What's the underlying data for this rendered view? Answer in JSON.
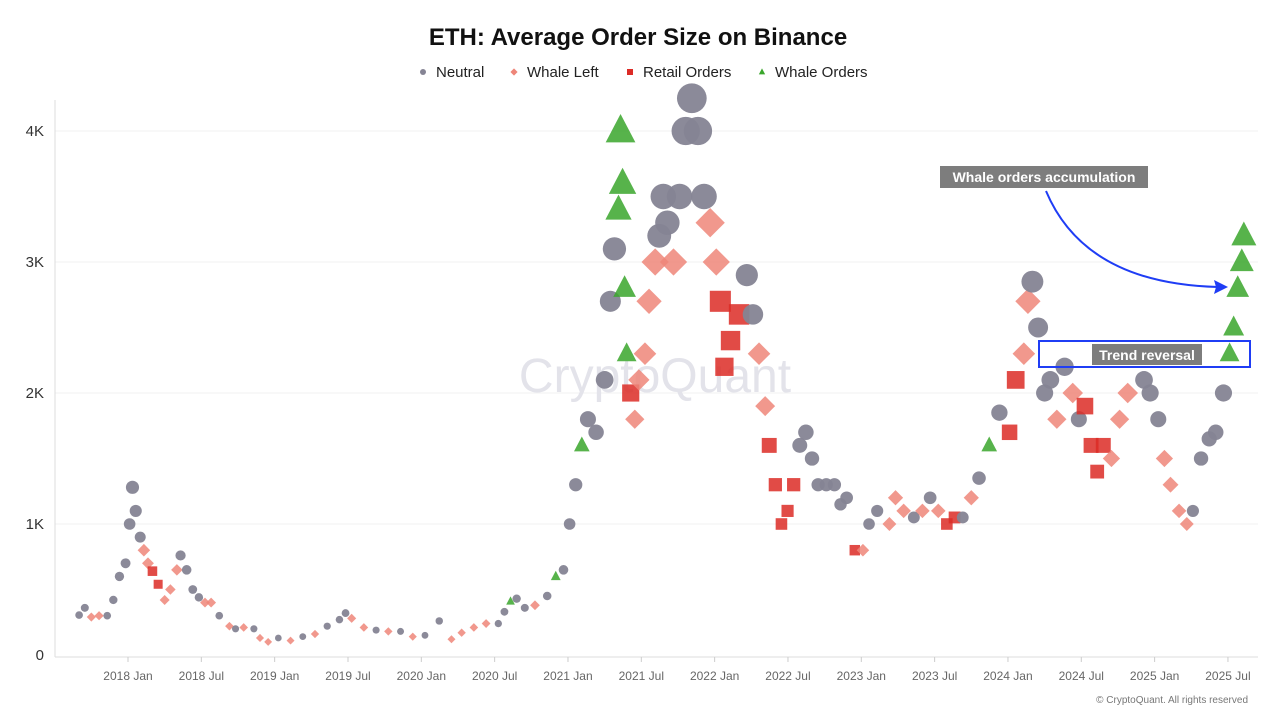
{
  "chart_data": {
    "type": "scatter",
    "title": "ETH: Average Order Size on Binance",
    "xlabel": "",
    "ylabel": "",
    "ylim": [
      0,
      4300
    ],
    "xlim": [
      "2017-08-20",
      "2025-08-20"
    ],
    "grid": true,
    "legend_placement": "top-center",
    "y_ticks": [
      {
        "v": 0,
        "label": "0"
      },
      {
        "v": 1000,
        "label": "1K"
      },
      {
        "v": 2000,
        "label": "2K"
      },
      {
        "v": 3000,
        "label": "3K"
      },
      {
        "v": 4000,
        "label": "4K"
      }
    ],
    "x_ticks": [
      {
        "d": "2018-01-01",
        "label": "2018 Jan"
      },
      {
        "d": "2018-07-01",
        "label": "2018 Jul"
      },
      {
        "d": "2019-01-01",
        "label": "2019 Jan"
      },
      {
        "d": "2019-07-01",
        "label": "2019 Jul"
      },
      {
        "d": "2020-01-01",
        "label": "2020 Jan"
      },
      {
        "d": "2020-07-01",
        "label": "2020 Jul"
      },
      {
        "d": "2021-01-01",
        "label": "2021 Jan"
      },
      {
        "d": "2021-07-01",
        "label": "2021 Jul"
      },
      {
        "d": "2022-01-01",
        "label": "2022 Jan"
      },
      {
        "d": "2022-07-01",
        "label": "2022 Jul"
      },
      {
        "d": "2023-01-01",
        "label": "2023 Jan"
      },
      {
        "d": "2023-07-01",
        "label": "2023 Jul"
      },
      {
        "d": "2024-01-01",
        "label": "2024 Jan"
      },
      {
        "d": "2024-07-01",
        "label": "2024 Jul"
      },
      {
        "d": "2025-01-01",
        "label": "2025 Jan"
      },
      {
        "d": "2025-07-01",
        "label": "2025 Jul"
      }
    ],
    "series": [
      {
        "key": "N",
        "name": "Neutral",
        "color": "#858494",
        "marker": "circle"
      },
      {
        "key": "W",
        "name": "Whale Left",
        "color": "#ee8679",
        "marker": "diamond"
      },
      {
        "key": "R",
        "name": "Retail Orders",
        "color": "#dc2b26",
        "marker": "square"
      },
      {
        "key": "G",
        "name": "Whale Orders",
        "color": "#3aa62c",
        "marker": "triangle"
      }
    ],
    "points": [
      [
        "2017-09-01",
        305,
        "N"
      ],
      [
        "2017-09-15",
        360,
        "N"
      ],
      [
        "2017-10-01",
        290,
        "W"
      ],
      [
        "2017-10-20",
        300,
        "W"
      ],
      [
        "2017-11-10",
        300,
        "N"
      ],
      [
        "2017-11-25",
        420,
        "N"
      ],
      [
        "2017-12-10",
        600,
        "N"
      ],
      [
        "2017-12-25",
        700,
        "N"
      ],
      [
        "2018-01-05",
        1000,
        "N"
      ],
      [
        "2018-01-12",
        1280,
        "N"
      ],
      [
        "2018-01-20",
        1100,
        "N"
      ],
      [
        "2018-02-01",
        900,
        "N"
      ],
      [
        "2018-02-10",
        800,
        "W"
      ],
      [
        "2018-02-20",
        700,
        "W"
      ],
      [
        "2018-03-01",
        640,
        "R"
      ],
      [
        "2018-03-15",
        540,
        "R"
      ],
      [
        "2018-04-01",
        420,
        "W"
      ],
      [
        "2018-04-15",
        500,
        "W"
      ],
      [
        "2018-05-01",
        650,
        "W"
      ],
      [
        "2018-05-10",
        760,
        "N"
      ],
      [
        "2018-05-25",
        650,
        "N"
      ],
      [
        "2018-06-10",
        500,
        "N"
      ],
      [
        "2018-06-25",
        440,
        "N"
      ],
      [
        "2018-07-10",
        400,
        "W"
      ],
      [
        "2018-07-25",
        400,
        "W"
      ],
      [
        "2018-08-15",
        300,
        "N"
      ],
      [
        "2018-09-10",
        220,
        "W"
      ],
      [
        "2018-09-25",
        200,
        "N"
      ],
      [
        "2018-10-15",
        210,
        "W"
      ],
      [
        "2018-11-10",
        200,
        "N"
      ],
      [
        "2018-11-25",
        130,
        "W"
      ],
      [
        "2018-12-15",
        100,
        "W"
      ],
      [
        "2019-01-10",
        130,
        "N"
      ],
      [
        "2019-02-10",
        110,
        "W"
      ],
      [
        "2019-03-10",
        140,
        "N"
      ],
      [
        "2019-04-10",
        160,
        "W"
      ],
      [
        "2019-05-10",
        220,
        "N"
      ],
      [
        "2019-06-10",
        270,
        "N"
      ],
      [
        "2019-06-25",
        320,
        "N"
      ],
      [
        "2019-07-10",
        280,
        "W"
      ],
      [
        "2019-08-10",
        210,
        "W"
      ],
      [
        "2019-09-10",
        190,
        "N"
      ],
      [
        "2019-10-10",
        180,
        "W"
      ],
      [
        "2019-11-10",
        180,
        "N"
      ],
      [
        "2019-12-10",
        140,
        "W"
      ],
      [
        "2020-01-10",
        150,
        "N"
      ],
      [
        "2020-02-15",
        260,
        "N"
      ],
      [
        "2020-03-15",
        120,
        "W"
      ],
      [
        "2020-04-10",
        170,
        "W"
      ],
      [
        "2020-05-10",
        210,
        "W"
      ],
      [
        "2020-06-10",
        240,
        "W"
      ],
      [
        "2020-07-10",
        240,
        "N"
      ],
      [
        "2020-07-25",
        330,
        "N"
      ],
      [
        "2020-08-10",
        410,
        "G"
      ],
      [
        "2020-08-25",
        430,
        "N"
      ],
      [
        "2020-09-15",
        360,
        "N"
      ],
      [
        "2020-10-10",
        380,
        "W"
      ],
      [
        "2020-11-10",
        450,
        "N"
      ],
      [
        "2020-12-01",
        600,
        "G"
      ],
      [
        "2020-12-20",
        650,
        "N"
      ],
      [
        "2021-01-05",
        1000,
        "N"
      ],
      [
        "2021-01-20",
        1300,
        "N"
      ],
      [
        "2021-02-05",
        1600,
        "G"
      ],
      [
        "2021-02-20",
        1800,
        "N"
      ],
      [
        "2021-03-10",
        1700,
        "N"
      ],
      [
        "2021-04-01",
        2100,
        "N"
      ],
      [
        "2021-04-15",
        2700,
        "N"
      ],
      [
        "2021-04-25",
        3100,
        "N"
      ],
      [
        "2021-05-05",
        3400,
        "G"
      ],
      [
        "2021-05-10",
        4000,
        "G"
      ],
      [
        "2021-05-15",
        3600,
        "G"
      ],
      [
        "2021-05-20",
        2800,
        "G"
      ],
      [
        "2021-05-25",
        2300,
        "G"
      ],
      [
        "2021-06-05",
        2000,
        "R"
      ],
      [
        "2021-06-15",
        1800,
        "W"
      ],
      [
        "2021-06-25",
        2100,
        "W"
      ],
      [
        "2021-07-10",
        2300,
        "W"
      ],
      [
        "2021-07-20",
        2700,
        "W"
      ],
      [
        "2021-08-05",
        3000,
        "W"
      ],
      [
        "2021-08-15",
        3200,
        "N"
      ],
      [
        "2021-08-25",
        3500,
        "N"
      ],
      [
        "2021-09-05",
        3300,
        "N"
      ],
      [
        "2021-09-20",
        3000,
        "W"
      ],
      [
        "2021-10-05",
        3500,
        "N"
      ],
      [
        "2021-10-20",
        4000,
        "N"
      ],
      [
        "2021-11-05",
        4250,
        "N"
      ],
      [
        "2021-11-20",
        4000,
        "N"
      ],
      [
        "2021-12-05",
        3500,
        "N"
      ],
      [
        "2021-12-20",
        3300,
        "W"
      ],
      [
        "2022-01-05",
        3000,
        "W"
      ],
      [
        "2022-01-15",
        2700,
        "R"
      ],
      [
        "2022-01-25",
        2200,
        "R"
      ],
      [
        "2022-02-10",
        2400,
        "R"
      ],
      [
        "2022-03-01",
        2600,
        "R"
      ],
      [
        "2022-03-20",
        2900,
        "N"
      ],
      [
        "2022-04-05",
        2600,
        "N"
      ],
      [
        "2022-04-20",
        2300,
        "W"
      ],
      [
        "2022-05-05",
        1900,
        "W"
      ],
      [
        "2022-05-15",
        1600,
        "R"
      ],
      [
        "2022-05-30",
        1300,
        "R"
      ],
      [
        "2022-06-15",
        1000,
        "R"
      ],
      [
        "2022-06-30",
        1100,
        "R"
      ],
      [
        "2022-07-15",
        1300,
        "R"
      ],
      [
        "2022-07-30",
        1600,
        "N"
      ],
      [
        "2022-08-15",
        1700,
        "N"
      ],
      [
        "2022-08-30",
        1500,
        "N"
      ],
      [
        "2022-09-15",
        1300,
        "N"
      ],
      [
        "2022-10-05",
        1300,
        "N"
      ],
      [
        "2022-10-25",
        1300,
        "N"
      ],
      [
        "2022-11-10",
        1150,
        "N"
      ],
      [
        "2022-11-25",
        1200,
        "N"
      ],
      [
        "2022-12-15",
        800,
        "R"
      ],
      [
        "2023-01-05",
        800,
        "W"
      ],
      [
        "2023-01-20",
        1000,
        "N"
      ],
      [
        "2023-02-10",
        1100,
        "N"
      ],
      [
        "2023-03-10",
        1000,
        "W"
      ],
      [
        "2023-03-25",
        1200,
        "W"
      ],
      [
        "2023-04-15",
        1100,
        "W"
      ],
      [
        "2023-05-10",
        1050,
        "N"
      ],
      [
        "2023-06-01",
        1100,
        "W"
      ],
      [
        "2023-06-20",
        1200,
        "N"
      ],
      [
        "2023-07-10",
        1100,
        "W"
      ],
      [
        "2023-08-01",
        1000,
        "R"
      ],
      [
        "2023-08-20",
        1050,
        "R"
      ],
      [
        "2023-09-10",
        1050,
        "N"
      ],
      [
        "2023-10-01",
        1200,
        "W"
      ],
      [
        "2023-10-20",
        1350,
        "N"
      ],
      [
        "2023-11-15",
        1600,
        "G"
      ],
      [
        "2023-12-10",
        1850,
        "N"
      ],
      [
        "2024-01-05",
        1700,
        "R"
      ],
      [
        "2024-01-20",
        2100,
        "R"
      ],
      [
        "2024-02-10",
        2300,
        "W"
      ],
      [
        "2024-02-20",
        2700,
        "W"
      ],
      [
        "2024-03-01",
        2850,
        "N"
      ],
      [
        "2024-03-15",
        2500,
        "N"
      ],
      [
        "2024-04-01",
        2000,
        "N"
      ],
      [
        "2024-04-15",
        2100,
        "N"
      ],
      [
        "2024-05-01",
        1800,
        "W"
      ],
      [
        "2024-05-20",
        2200,
        "N"
      ],
      [
        "2024-06-10",
        2000,
        "W"
      ],
      [
        "2024-06-25",
        1800,
        "N"
      ],
      [
        "2024-07-10",
        1900,
        "R"
      ],
      [
        "2024-07-25",
        1600,
        "R"
      ],
      [
        "2024-08-10",
        1400,
        "R"
      ],
      [
        "2024-08-25",
        1600,
        "R"
      ],
      [
        "2024-09-15",
        1500,
        "W"
      ],
      [
        "2024-10-05",
        1800,
        "W"
      ],
      [
        "2024-10-25",
        2000,
        "W"
      ],
      [
        "2024-11-15",
        2300,
        "N"
      ],
      [
        "2024-12-05",
        2100,
        "N"
      ],
      [
        "2024-12-20",
        2000,
        "N"
      ],
      [
        "2025-01-10",
        1800,
        "N"
      ],
      [
        "2025-01-25",
        1500,
        "W"
      ],
      [
        "2025-02-10",
        1300,
        "W"
      ],
      [
        "2025-03-01",
        1100,
        "W"
      ],
      [
        "2025-03-20",
        1000,
        "W"
      ],
      [
        "2025-04-05",
        1100,
        "N"
      ],
      [
        "2025-04-25",
        1500,
        "N"
      ],
      [
        "2025-05-15",
        1650,
        "N"
      ],
      [
        "2025-06-01",
        1700,
        "N"
      ],
      [
        "2025-06-20",
        2000,
        "N"
      ],
      [
        "2025-07-05",
        2300,
        "G"
      ],
      [
        "2025-07-15",
        2500,
        "G"
      ],
      [
        "2025-07-25",
        2800,
        "G"
      ],
      [
        "2025-08-05",
        3000,
        "G"
      ],
      [
        "2025-08-10",
        3200,
        "G"
      ]
    ],
    "annotations": [
      {
        "text": "Whale orders accumulation",
        "color": "#1f3df5"
      },
      {
        "text": "Trend reversal",
        "color": "#1f3df5"
      }
    ],
    "watermark": "CryptoQuant",
    "copyright": "© CryptoQuant. All rights reserved"
  }
}
